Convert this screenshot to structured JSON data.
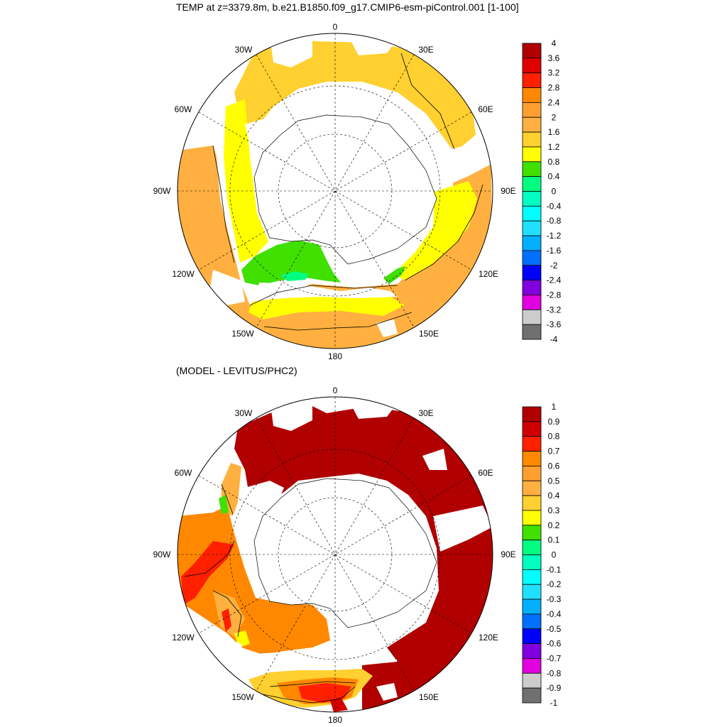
{
  "top_panel": {
    "title": "TEMP at z=3379.8m, b.e21.B1850.f09_g17.CMIP6-esm-piControl.001 [1-100]",
    "lon_labels": {
      "n": "0",
      "ne30": "30E",
      "ne60": "60E",
      "e": "90E",
      "se120": "120E",
      "se150": "150E",
      "s": "180",
      "sw150": "150W",
      "sw120": "120W",
      "w": "90W",
      "nw60": "60W",
      "nw30": "30W"
    },
    "colorbar": {
      "labels": [
        "4",
        "3.6",
        "3.2",
        "2.8",
        "2.4",
        "2",
        "1.6",
        "1.2",
        "0.8",
        "0.4",
        "0",
        "-0.4",
        "-0.8",
        "-1.2",
        "-1.6",
        "-2",
        "-2.4",
        "-2.8",
        "-3.2",
        "-3.6",
        "-4"
      ],
      "colors": [
        "#b00000",
        "#e00000",
        "#ff2000",
        "#ff8800",
        "#ff9f30",
        "#ffb040",
        "#ffd030",
        "#ffff00",
        "#40e000",
        "#00ff80",
        "#00ffc0",
        "#00ffff",
        "#20e0ff",
        "#00b0ff",
        "#0070ff",
        "#0000ff",
        "#8000e0",
        "#e000e0",
        "#cccccc",
        "#707070"
      ]
    }
  },
  "bottom_panel": {
    "title": "(MODEL - LEVITUS/PHC2)",
    "lon_labels": {
      "n": "0",
      "ne30": "30E",
      "ne60": "60E",
      "e": "90E",
      "se120": "120E",
      "se150": "150E",
      "s": "180",
      "sw150": "150W",
      "sw120": "120W",
      "w": "90W",
      "nw60": "60W",
      "nw30": "30W"
    },
    "colorbar": {
      "labels": [
        "1",
        "0.9",
        "0.8",
        "0.7",
        "0.6",
        "0.5",
        "0.4",
        "0.3",
        "0.2",
        "0.1",
        "0",
        "-0.1",
        "-0.2",
        "-0.3",
        "-0.4",
        "-0.5",
        "-0.6",
        "-0.7",
        "-0.8",
        "-0.9",
        "-1"
      ],
      "colors": [
        "#b00000",
        "#d00000",
        "#ff2000",
        "#ff8800",
        "#ff9f30",
        "#ffb040",
        "#ffd030",
        "#ffff00",
        "#40e000",
        "#00ff80",
        "#00ffc0",
        "#00ffff",
        "#20e0ff",
        "#00b0ff",
        "#0070ff",
        "#0000ff",
        "#8000e0",
        "#e000e0",
        "#cccccc",
        "#707070"
      ]
    }
  }
}
